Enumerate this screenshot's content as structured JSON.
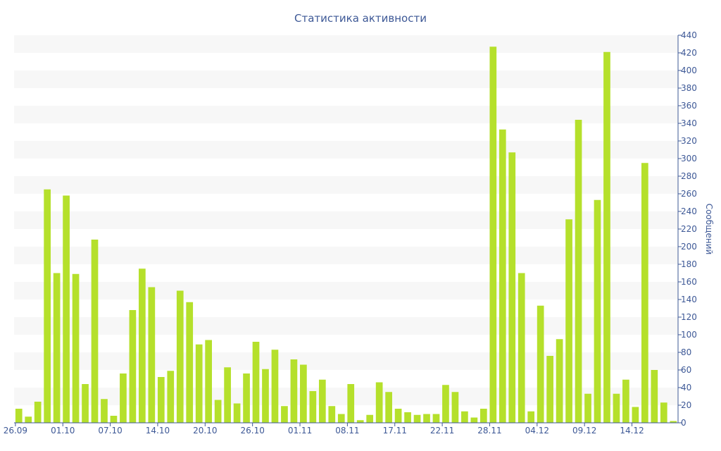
{
  "chart_data": {
    "type": "bar",
    "title": "Статистика активности",
    "xlabel": "",
    "ylabel": "Сообщений",
    "ylim": [
      0,
      440
    ],
    "y_ticks": [
      0,
      20,
      40,
      60,
      80,
      100,
      120,
      140,
      160,
      180,
      200,
      220,
      240,
      260,
      280,
      300,
      320,
      340,
      360,
      380,
      400,
      420,
      440
    ],
    "y_axis_position": "right",
    "grid": "horizontal-bands",
    "colors": {
      "bar": "#b5e02b",
      "text": "#3d5896",
      "band": "#f7f7f7",
      "axis": "#3d5896"
    },
    "x_tick_labels": [
      {
        "label": "26.09",
        "index": 0
      },
      {
        "label": "01.10",
        "index": 5
      },
      {
        "label": "07.10",
        "index": 10
      },
      {
        "label": "14.10",
        "index": 15
      },
      {
        "label": "20.10",
        "index": 20
      },
      {
        "label": "26.10",
        "index": 25
      },
      {
        "label": "01.11",
        "index": 30
      },
      {
        "label": "08.11",
        "index": 35
      },
      {
        "label": "17.11",
        "index": 40
      },
      {
        "label": "22.11",
        "index": 45
      },
      {
        "label": "28.11",
        "index": 50
      },
      {
        "label": "04.12",
        "index": 55
      },
      {
        "label": "09.12",
        "index": 60
      },
      {
        "label": "14.12",
        "index": 65
      }
    ],
    "values": [
      16,
      7,
      24,
      265,
      170,
      258,
      169,
      44,
      208,
      27,
      8,
      56,
      128,
      175,
      154,
      52,
      59,
      150,
      137,
      89,
      94,
      26,
      63,
      22,
      56,
      92,
      61,
      83,
      19,
      72,
      66,
      36,
      49,
      19,
      10,
      44,
      3,
      9,
      46,
      35,
      16,
      12,
      9,
      10,
      10,
      43,
      35,
      13,
      6,
      16,
      427,
      333,
      307,
      170,
      13,
      133,
      76,
      95,
      231,
      344,
      33,
      253,
      421,
      33,
      49,
      18,
      295,
      60,
      23,
      2
    ]
  }
}
